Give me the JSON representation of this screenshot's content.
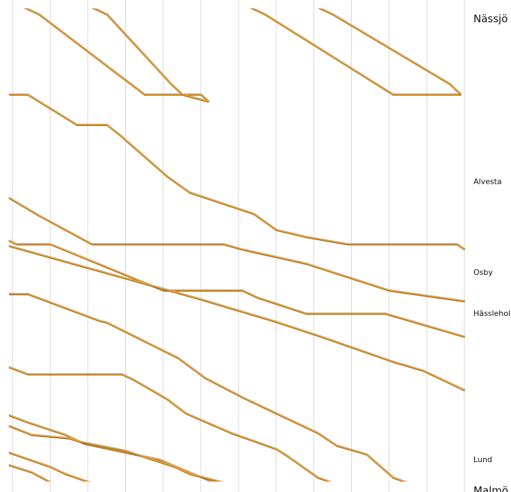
{
  "chart_data": {
    "type": "line",
    "stations": [
      {
        "name": "Nässjö",
        "km": 0,
        "major": true
      },
      {
        "name": "Alvesta",
        "km": 94,
        "major": false
      },
      {
        "name": "Osby",
        "km": 145,
        "major": false
      },
      {
        "name": "Hässleholm",
        "km": 168,
        "major": false
      },
      {
        "name": "Lund",
        "km": 250,
        "major": false
      },
      {
        "name": "Malmö",
        "km": 266,
        "major": true
      }
    ],
    "x_range_min": [
      0,
      120
    ],
    "y_range_km": [
      0,
      266
    ],
    "grid_x_every_min": 10,
    "line_color": "#e8a33a",
    "line_shadow_color": "#8a7040",
    "grid_color": "#d6d6d6",
    "series": [
      {
        "values": [
          [
            3,
            -4
          ],
          [
            7,
            0
          ],
          [
            35,
            45
          ],
          [
            50,
            45
          ],
          [
            52,
            49
          ]
        ]
      },
      {
        "values": [
          [
            21,
            -4
          ],
          [
            25,
            0
          ],
          [
            42,
            39
          ],
          [
            45,
            45
          ],
          [
            52,
            49
          ]
        ]
      },
      {
        "values": [
          [
            63,
            -4
          ],
          [
            67,
            0
          ],
          [
            101,
            45
          ],
          [
            119,
            45
          ]
        ]
      },
      {
        "values": [
          [
            81,
            -4
          ],
          [
            85,
            0
          ],
          [
            116,
            39
          ],
          [
            119,
            45
          ]
        ]
      },
      {
        "values": [
          [
            -1,
            45
          ],
          [
            4,
            45
          ],
          [
            17,
            62
          ],
          [
            25,
            62
          ],
          [
            28,
            67
          ],
          [
            41,
            91
          ],
          [
            47,
            100
          ],
          [
            64,
            112
          ],
          [
            70,
            121
          ],
          [
            78,
            125
          ],
          [
            89,
            129
          ],
          [
            118,
            129
          ],
          [
            120,
            132
          ]
        ]
      },
      {
        "values": [
          [
            -1,
            103
          ],
          [
            7,
            113
          ],
          [
            21,
            129
          ],
          [
            56,
            129
          ],
          [
            61,
            132
          ],
          [
            78,
            140
          ],
          [
            100,
            155
          ],
          [
            120,
            161
          ]
        ]
      },
      {
        "values": [
          [
            -1,
            127
          ],
          [
            1,
            129
          ],
          [
            10,
            129
          ],
          [
            40,
            155
          ],
          [
            61,
            155
          ],
          [
            65,
            159
          ],
          [
            78,
            168
          ],
          [
            99,
            168
          ],
          [
            120,
            181
          ]
        ]
      },
      {
        "values": [
          [
            -1,
            130
          ],
          [
            50,
            160
          ],
          [
            69,
            172
          ],
          [
            82,
            181
          ],
          [
            101,
            195
          ],
          [
            109,
            200
          ],
          [
            120,
            211
          ]
        ]
      },
      {
        "values": [
          [
            -1,
            157
          ],
          [
            4,
            157
          ],
          [
            23,
            172
          ],
          [
            25,
            173
          ],
          [
            44,
            193
          ],
          [
            51,
            204
          ],
          [
            61,
            215
          ],
          [
            74,
            228
          ],
          [
            81,
            235
          ],
          [
            86,
            242
          ],
          [
            94,
            247
          ],
          [
            101,
            260
          ],
          [
            109,
            266
          ]
        ]
      },
      {
        "values": [
          [
            -1,
            198
          ],
          [
            4,
            202
          ],
          [
            29,
            202
          ],
          [
            32,
            205
          ],
          [
            41,
            216
          ],
          [
            46,
            224
          ],
          [
            58,
            235
          ],
          [
            70,
            244
          ],
          [
            73,
            248
          ],
          [
            81,
            260
          ],
          [
            89,
            266
          ]
        ]
      },
      {
        "values": [
          [
            -1,
            246
          ],
          [
            10,
            254
          ],
          [
            14,
            258
          ],
          [
            25,
            266
          ]
        ]
      },
      {
        "values": [
          [
            -1,
            253
          ],
          [
            5,
            257
          ],
          [
            13,
            266
          ],
          [
            18,
            266
          ]
        ]
      },
      {
        "values": [
          [
            -1,
            225
          ],
          [
            4,
            229
          ],
          [
            14,
            236
          ],
          [
            19,
            241
          ],
          [
            39,
            250
          ],
          [
            48,
            258
          ],
          [
            55,
            264
          ],
          [
            58,
            266
          ]
        ]
      },
      {
        "values": [
          [
            -1,
            231
          ],
          [
            5,
            236
          ],
          [
            15,
            238
          ],
          [
            18,
            240
          ],
          [
            30,
            245
          ],
          [
            43,
            254
          ],
          [
            47,
            258
          ],
          [
            62,
            266
          ],
          [
            71,
            266
          ]
        ]
      }
    ]
  }
}
